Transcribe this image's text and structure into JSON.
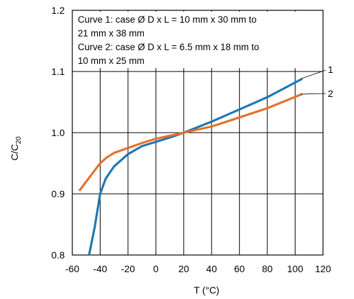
{
  "chart_data": {
    "type": "line",
    "xlabel": "T (°C)",
    "ylabel_main": "C/C",
    "ylabel_sub": "20",
    "xlim": [
      -60,
      120
    ],
    "ylim": [
      0.8,
      1.2
    ],
    "x_ticks": [
      "-60",
      "-40",
      "-20",
      "0",
      "20",
      "40",
      "60",
      "80",
      "100",
      "120"
    ],
    "y_ticks": [
      "0.8",
      "0.9",
      "1.0",
      "1.1",
      "1.2"
    ],
    "grid": true,
    "legend_lines": [
      "Curve 1: case Ø D x L = 10 mm x 30 mm to",
      "21 mm x 38 mm",
      "Curve 2: case Ø D x L = 6.5 mm x 18 mm to",
      "10 mm x 25 mm"
    ],
    "series": [
      {
        "name": "1",
        "color": "#1f77b4",
        "x": [
          -48,
          -44,
          -40,
          -36,
          -30,
          -20,
          -10,
          0,
          10,
          20,
          40,
          60,
          80,
          105
        ],
        "y": [
          0.8,
          0.845,
          0.9,
          0.925,
          0.945,
          0.965,
          0.978,
          0.985,
          0.992,
          1.0,
          1.018,
          1.038,
          1.058,
          1.088
        ]
      },
      {
        "name": "2",
        "color": "#e8702a",
        "x": [
          -55,
          -50,
          -45,
          -40,
          -35,
          -30,
          -20,
          -10,
          0,
          10,
          20,
          40,
          60,
          80,
          105
        ],
        "y": [
          0.905,
          0.92,
          0.935,
          0.95,
          0.96,
          0.967,
          0.975,
          0.983,
          0.99,
          0.995,
          1.0,
          1.01,
          1.025,
          1.04,
          1.063
        ]
      }
    ]
  }
}
